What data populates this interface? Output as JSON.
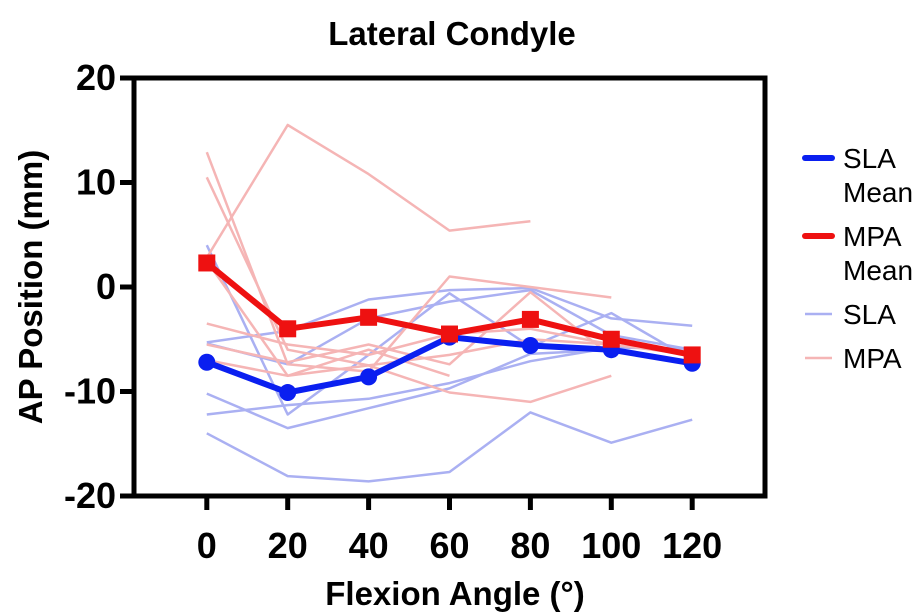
{
  "chart_data": {
    "type": "line",
    "title": "Lateral Condyle",
    "xlabel": "Flexion Angle (°)",
    "ylabel": "AP Position (mm)",
    "xlim": [
      -18,
      138
    ],
    "ylim": [
      -20,
      20
    ],
    "xticks": [
      0,
      20,
      40,
      60,
      80,
      100,
      120
    ],
    "yticks": [
      20,
      10,
      0,
      -10,
      -20
    ],
    "ytick_labels": [
      "20",
      "10",
      "0",
      "-10",
      "-20"
    ],
    "grid": false,
    "legend_position": "right",
    "colors": {
      "sla_mean": "#0a1ff0",
      "mpa_mean": "#ee1111",
      "sla": "#aab0f2",
      "mpa": "#f5b5b5"
    },
    "series": [
      {
        "name": "SLA Mean",
        "legend_lines": [
          "SLA",
          "Mean"
        ],
        "role": "sla_mean",
        "marker": "circle",
        "x": [
          0,
          20,
          40,
          60,
          80,
          100,
          120
        ],
        "values": [
          -7.2,
          -10.1,
          -8.6,
          -4.8,
          -5.6,
          -6.0,
          -7.3
        ]
      },
      {
        "name": "MPA Mean",
        "legend_lines": [
          "MPA",
          "Mean"
        ],
        "role": "mpa_mean",
        "marker": "square",
        "x": [
          0,
          20,
          40,
          60,
          80,
          100,
          120
        ],
        "values": [
          2.3,
          -4.0,
          -2.9,
          -4.5,
          -3.1,
          -5.0,
          -6.5
        ]
      },
      {
        "name": "SLA",
        "legend_lines": [
          "SLA"
        ],
        "role": "sla",
        "marker": "none",
        "individuals": [
          {
            "x": [
              0,
              20,
              40,
              60,
              80,
              100,
              120
            ],
            "values": [
              -14.0,
              -18.1,
              -18.6,
              -17.7,
              -12.0,
              -14.9,
              -12.7
            ]
          },
          {
            "x": [
              0,
              20,
              40,
              60,
              80,
              100,
              120
            ],
            "values": [
              -10.2,
              -13.5,
              -11.6,
              -9.7,
              -6.4,
              -6.0,
              -7.2
            ]
          },
          {
            "x": [
              0,
              20,
              40,
              60,
              80,
              100,
              120
            ],
            "values": [
              -12.2,
              -11.3,
              -10.7,
              -9.2,
              -7.1,
              -5.8,
              -5.9
            ]
          },
          {
            "x": [
              0,
              20,
              40,
              60,
              80,
              100,
              120
            ],
            "values": [
              4.0,
              -12.2,
              -6.5,
              -0.6,
              -5.7,
              -2.5,
              -7.0
            ]
          },
          {
            "x": [
              0,
              20,
              40,
              60,
              80,
              100,
              120
            ],
            "values": [
              -5.4,
              -7.4,
              -3.0,
              -1.4,
              -0.3,
              -4.6,
              -6.0
            ]
          },
          {
            "x": [
              0,
              20,
              40,
              60,
              80,
              100,
              120
            ],
            "values": [
              -5.3,
              -4.2,
              -1.2,
              -0.3,
              -0.1,
              -3.0,
              -3.7
            ]
          }
        ]
      },
      {
        "name": "MPA",
        "legend_lines": [
          "MPA"
        ],
        "role": "mpa",
        "marker": "none",
        "individuals": [
          {
            "x": [
              0,
              20,
              40,
              60,
              80
            ],
            "values": [
              2.8,
              15.5,
              10.8,
              5.4,
              6.3
            ]
          },
          {
            "x": [
              0,
              20,
              40,
              60,
              80,
              100
            ],
            "values": [
              12.9,
              -7.4,
              -8.1,
              1.0,
              0.0,
              -1.0
            ]
          },
          {
            "x": [
              0,
              20,
              40,
              60,
              80,
              100
            ],
            "values": [
              10.5,
              -6.0,
              -7.5,
              -10.1,
              -11.0,
              -8.5
            ]
          },
          {
            "x": [
              0,
              20,
              40,
              60,
              80,
              100
            ],
            "values": [
              -5.5,
              -7.2,
              -5.5,
              -7.4,
              -0.5,
              -6.6
            ]
          },
          {
            "x": [
              0,
              20,
              40,
              60
            ],
            "values": [
              2.5,
              -8.5,
              -6.0,
              -8.5
            ]
          },
          {
            "x": [
              0,
              20,
              40,
              60,
              80,
              100
            ],
            "values": [
              -7.0,
              -8.5,
              -7.5,
              -6.5,
              -5.0,
              -5.5
            ]
          },
          {
            "x": [
              0,
              20,
              40,
              60,
              80,
              100,
              120
            ],
            "values": [
              -3.5,
              -5.5,
              -6.5,
              -4.5,
              -4.0,
              -5.5,
              -6.5
            ]
          }
        ]
      }
    ]
  }
}
